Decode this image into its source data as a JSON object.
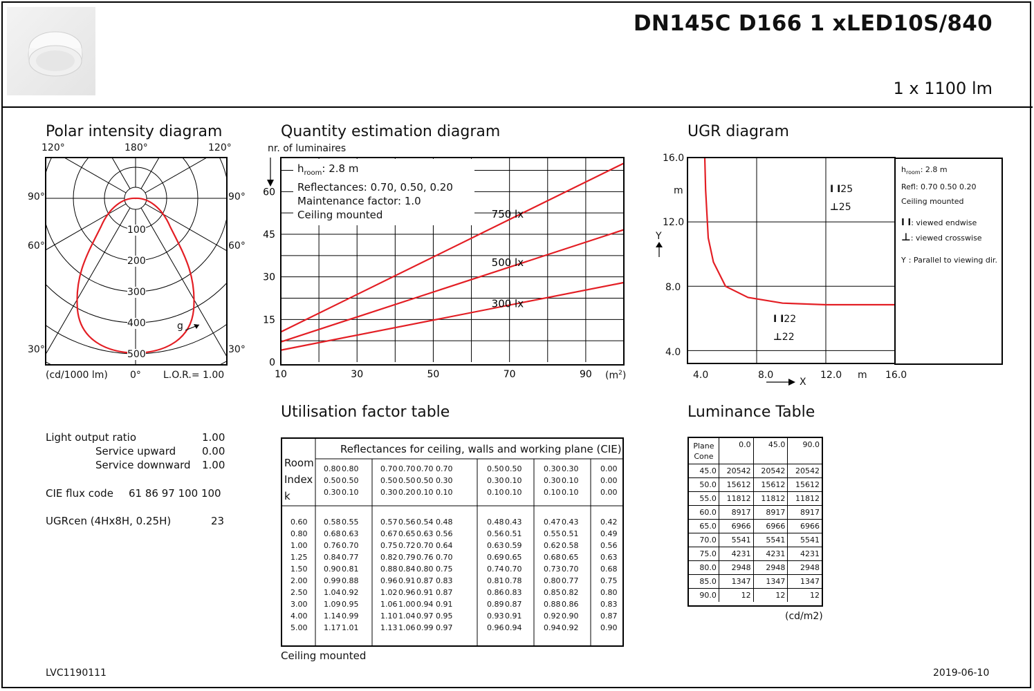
{
  "header": {
    "title": "DN145C D166 1 xLED10S/840",
    "flux": "1 x 1100 lm"
  },
  "polar": {
    "title": "Polar intensity diagram",
    "top_labels": [
      "120°",
      "180°",
      "120°"
    ],
    "side_labels_left": [
      "90°",
      "60°",
      "30°"
    ],
    "side_labels_right": [
      "90°",
      "60°",
      "30°"
    ],
    "ring_labels": [
      "100",
      "200",
      "300",
      "400",
      "500"
    ],
    "curve_label": "g",
    "units": "(cd/1000 lm)",
    "bottom_angle": "0°",
    "lor": "L.O.R.= 1.00"
  },
  "quantity": {
    "title": "Quantity estimation diagram",
    "ylabel": "nr. of luminaires",
    "info": {
      "hroom_prefix": "h",
      "hroom_sub": "room",
      "hroom_value": ": 2.8 m",
      "reflectances": "Reflectances: 0.70, 0.50, 0.20",
      "maintenance": "Maintenance factor: 1.0",
      "mounting": "Ceiling mounted"
    },
    "unit_prefix": "(m",
    "unit_sup": "2",
    "unit_suffix": ")"
  },
  "quantity_chart": {
    "type": "line",
    "x": [
      10,
      100
    ],
    "xticks": [
      "10",
      "30",
      "50",
      "70",
      "90"
    ],
    "yticks": [
      "0",
      "15",
      "30",
      "45",
      "60"
    ],
    "xlim": [
      10,
      100
    ],
    "ylim": [
      0,
      72
    ],
    "series": [
      {
        "name": "750 lx",
        "values": [
          10.6,
          70
        ]
      },
      {
        "name": "500 lx",
        "values": [
          7.1,
          46.6
        ]
      },
      {
        "name": "300 lx",
        "values": [
          4.2,
          28
        ]
      }
    ]
  },
  "ugr": {
    "title": "UGR diagram",
    "yticks": [
      "16.0",
      "12.0",
      "8.0",
      "4.0"
    ],
    "xticks": [
      "4.0",
      "8.0",
      "12.0",
      "16.0"
    ],
    "ylabel_unit": "m",
    "xlabel_unit": "m",
    "y_axis": "Y",
    "x_axis": "X",
    "mark_upper_endwise": "25",
    "mark_upper_crosswise": "25",
    "mark_lower_endwise": "22",
    "mark_lower_crosswise": "22",
    "legend": {
      "hroom_prefix": "h",
      "hroom_sub": "room",
      "hroom_value": ": 2.8 m",
      "refl": "Refl: 0.70 0.50 0.20",
      "mount": "Ceiling mounted",
      "endwise": ": viewed endwise",
      "crosswise": ": viewed crosswise",
      "parallel_prefix": "Y",
      "parallel": ": Parallel to viewing dir."
    }
  },
  "ugr_chart": {
    "type": "line",
    "xlim": [
      4,
      16
    ],
    "ylim": [
      3.2,
      16
    ],
    "series": [
      {
        "x": [
          5.0,
          5.05,
          5.2,
          5.5,
          6.2,
          7.5,
          9.5,
          12,
          16
        ],
        "values": [
          16,
          14,
          11,
          9.5,
          8,
          7.3,
          6.95,
          6.85,
          6.85
        ]
      }
    ]
  },
  "left_stats": {
    "lor_label": "Light output ratio",
    "lor_value": "1.00",
    "up_label": "Service upward",
    "up_value": "0.00",
    "down_label": "Service downward",
    "down_value": "1.00",
    "cie_label": "CIE flux code",
    "cie_value": "61 86 97 100 100",
    "ugr_label": "UGRcen (4Hx8H, 0.25H)",
    "ugr_value": "23"
  },
  "utilisation": {
    "title": "Utilisation factor table",
    "header": "Reflectances for ceiling, walls and working plane (CIE)",
    "room_index": [
      "Room",
      "Index",
      "k"
    ],
    "ceiling": [
      "0.80",
      "0.80",
      "0.70",
      "0.70",
      "0.70",
      "0.70",
      "0.50",
      "0.50",
      "0.30",
      "0.30",
      "0.00"
    ],
    "walls": [
      "0.50",
      "0.50",
      "0.50",
      "0.50",
      "0.50",
      "0.30",
      "0.30",
      "0.10",
      "0.30",
      "0.10",
      "0.00"
    ],
    "floor": [
      "0.30",
      "0.10",
      "0.30",
      "0.20",
      "0.10",
      "0.10",
      "0.10",
      "0.10",
      "0.10",
      "0.10",
      "0.00"
    ],
    "rows": [
      {
        "k": "0.60",
        "v": [
          "0.58",
          "0.55",
          "0.57",
          "0.56",
          "0.54",
          "0.48",
          "0.48",
          "0.43",
          "0.47",
          "0.43",
          "0.42"
        ]
      },
      {
        "k": "0.80",
        "v": [
          "0.68",
          "0.63",
          "0.67",
          "0.65",
          "0.63",
          "0.56",
          "0.56",
          "0.51",
          "0.55",
          "0.51",
          "0.49"
        ]
      },
      {
        "k": "1.00",
        "v": [
          "0.76",
          "0.70",
          "0.75",
          "0.72",
          "0.70",
          "0.64",
          "0.63",
          "0.59",
          "0.62",
          "0.58",
          "0.56"
        ]
      },
      {
        "k": "1.25",
        "v": [
          "0.84",
          "0.77",
          "0.82",
          "0.79",
          "0.76",
          "0.70",
          "0.69",
          "0.65",
          "0.68",
          "0.65",
          "0.63"
        ]
      },
      {
        "k": "1.50",
        "v": [
          "0.90",
          "0.81",
          "0.88",
          "0.84",
          "0.80",
          "0.75",
          "0.74",
          "0.70",
          "0.73",
          "0.70",
          "0.68"
        ]
      },
      {
        "k": "2.00",
        "v": [
          "0.99",
          "0.88",
          "0.96",
          "0.91",
          "0.87",
          "0.83",
          "0.81",
          "0.78",
          "0.80",
          "0.77",
          "0.75"
        ]
      },
      {
        "k": "2.50",
        "v": [
          "1.04",
          "0.92",
          "1.02",
          "0.96",
          "0.91",
          "0.87",
          "0.86",
          "0.83",
          "0.85",
          "0.82",
          "0.80"
        ]
      },
      {
        "k": "3.00",
        "v": [
          "1.09",
          "0.95",
          "1.06",
          "1.00",
          "0.94",
          "0.91",
          "0.89",
          "0.87",
          "0.88",
          "0.86",
          "0.83"
        ]
      },
      {
        "k": "4.00",
        "v": [
          "1.14",
          "0.99",
          "1.10",
          "1.04",
          "0.97",
          "0.95",
          "0.93",
          "0.91",
          "0.92",
          "0.90",
          "0.87"
        ]
      },
      {
        "k": "5.00",
        "v": [
          "1.17",
          "1.01",
          "1.13",
          "1.06",
          "0.99",
          "0.97",
          "0.96",
          "0.94",
          "0.94",
          "0.92",
          "0.90"
        ]
      }
    ],
    "footer": "Ceiling mounted"
  },
  "luminance": {
    "title": "Luminance Table",
    "corner_top": "Plane",
    "corner_bottom": "Cone",
    "planes": [
      "0.0",
      "45.0",
      "90.0"
    ],
    "rows": [
      {
        "cone": "45.0",
        "v": [
          "20542",
          "20542",
          "20542"
        ]
      },
      {
        "cone": "50.0",
        "v": [
          "15612",
          "15612",
          "15612"
        ]
      },
      {
        "cone": "55.0",
        "v": [
          "11812",
          "11812",
          "11812"
        ]
      },
      {
        "cone": "60.0",
        "v": [
          "8917",
          "8917",
          "8917"
        ]
      },
      {
        "cone": "65.0",
        "v": [
          "6966",
          "6966",
          "6966"
        ]
      },
      {
        "cone": "70.0",
        "v": [
          "5541",
          "5541",
          "5541"
        ]
      },
      {
        "cone": "75.0",
        "v": [
          "4231",
          "4231",
          "4231"
        ]
      },
      {
        "cone": "80.0",
        "v": [
          "2948",
          "2948",
          "2948"
        ]
      },
      {
        "cone": "85.0",
        "v": [
          "1347",
          "1347",
          "1347"
        ]
      },
      {
        "cone": "90.0",
        "v": [
          "12",
          "12",
          "12"
        ]
      }
    ],
    "units": "(cd/m2)"
  },
  "footer": {
    "code": "LVC1190111",
    "date": "2019-06-10"
  },
  "colors": {
    "curve": "#e31e24"
  }
}
